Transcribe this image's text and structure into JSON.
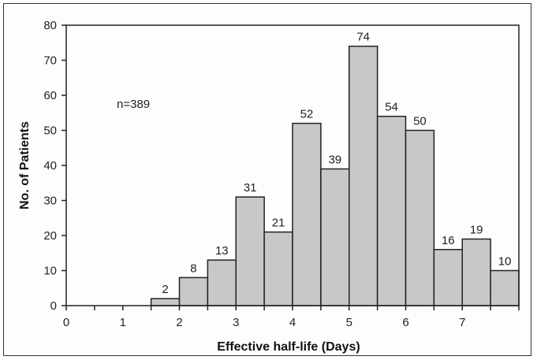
{
  "chart_data": {
    "type": "bar",
    "title": "",
    "xlabel": "Effective half-life (Days)",
    "ylabel": "No. of Patients",
    "annotation": "n=389",
    "xlim": [
      0,
      8
    ],
    "ylim": [
      0,
      80
    ],
    "x_ticks": [
      "0",
      "1",
      "2",
      "3",
      "4",
      "5",
      "6",
      "7"
    ],
    "y_ticks": [
      "0",
      "10",
      "20",
      "30",
      "40",
      "50",
      "60",
      "70",
      "80"
    ],
    "bin_width": 0.5,
    "bins": [
      {
        "start": 1.5,
        "value": 2,
        "label": "2"
      },
      {
        "start": 2.0,
        "value": 8,
        "label": "8"
      },
      {
        "start": 2.5,
        "value": 13,
        "label": "13"
      },
      {
        "start": 3.0,
        "value": 31,
        "label": "31"
      },
      {
        "start": 3.5,
        "value": 21,
        "label": "21"
      },
      {
        "start": 4.0,
        "value": 52,
        "label": "52"
      },
      {
        "start": 4.5,
        "value": 39,
        "label": "39"
      },
      {
        "start": 5.0,
        "value": 74,
        "label": "74"
      },
      {
        "start": 5.5,
        "value": 54,
        "label": "54"
      },
      {
        "start": 6.0,
        "value": 50,
        "label": "50"
      },
      {
        "start": 6.5,
        "value": 16,
        "label": "16"
      },
      {
        "start": 7.0,
        "value": 19,
        "label": "19"
      },
      {
        "start": 7.5,
        "value": 10,
        "label": "10"
      }
    ],
    "grid": false,
    "colors": {
      "bar_fill": "#c8c8c8",
      "bar_stroke": "#222222"
    }
  }
}
